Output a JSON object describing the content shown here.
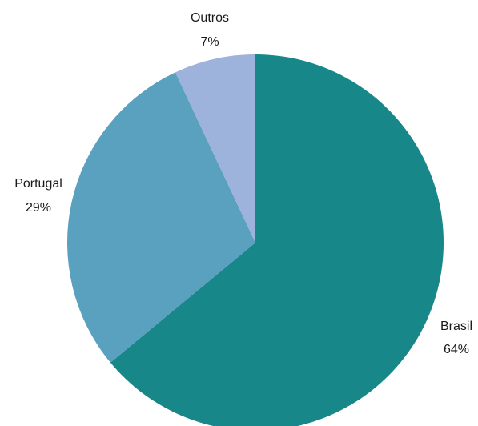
{
  "chart_data": {
    "type": "pie",
    "title": "",
    "start_angle_deg": 0,
    "direction": "clockwise",
    "slices": [
      {
        "label": "Brasil",
        "value": 64,
        "value_label": "64%",
        "color": "#17878a"
      },
      {
        "label": "Portugal",
        "value": 29,
        "value_label": "29%",
        "color": "#5aa0bf"
      },
      {
        "label": "Outros",
        "value": 7,
        "value_label": "7%",
        "color": "#9db3db"
      }
    ]
  }
}
